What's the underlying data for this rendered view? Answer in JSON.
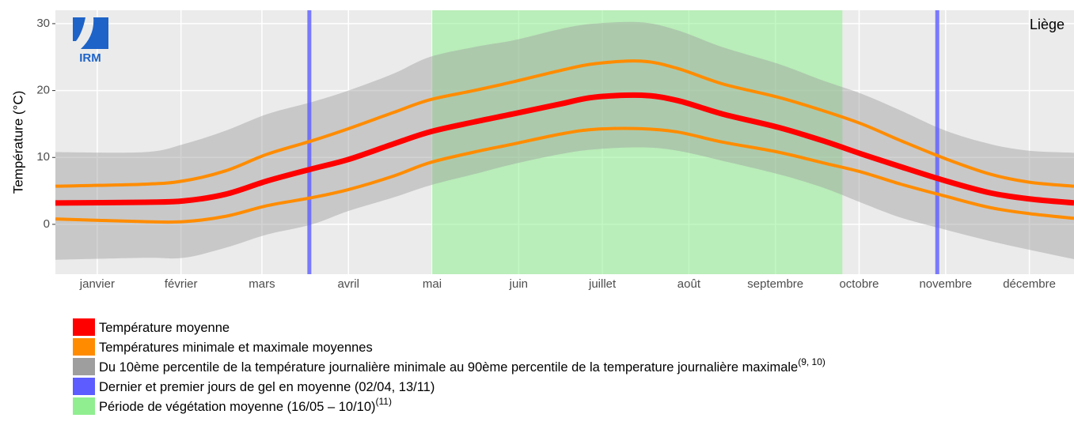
{
  "chart_data": {
    "type": "line",
    "title": "Liège",
    "y_label": "Température (°C)",
    "logo": "IRM",
    "x": [
      1,
      33,
      47,
      62,
      77,
      93,
      106,
      122,
      135,
      151,
      165,
      182,
      194,
      211,
      224,
      240,
      260,
      276,
      290,
      304,
      320,
      336,
      350,
      366
    ],
    "xlim": [
      1,
      366
    ],
    "xticks": [
      {
        "value": 16,
        "label": "janvier"
      },
      {
        "value": 46,
        "label": "février"
      },
      {
        "value": 75,
        "label": "mars"
      },
      {
        "value": 106,
        "label": "avril"
      },
      {
        "value": 136,
        "label": "mai"
      },
      {
        "value": 167,
        "label": "juin"
      },
      {
        "value": 197,
        "label": "juillet"
      },
      {
        "value": 228,
        "label": "août"
      },
      {
        "value": 259,
        "label": "septembre"
      },
      {
        "value": 289,
        "label": "octobre"
      },
      {
        "value": 320,
        "label": "novembre"
      },
      {
        "value": 350,
        "label": "décembre"
      }
    ],
    "ylim": [
      -7.45,
      32.0
    ],
    "yticks": [
      0,
      10,
      20,
      30
    ],
    "grid": true,
    "band": {
      "color": "#9e9e9e",
      "low": [
        -5.3,
        -5.0,
        -5.0,
        -3.5,
        -1.5,
        0,
        2,
        4,
        5.8,
        7.5,
        9,
        10.5,
        11.2,
        11.5,
        11,
        9.5,
        7.5,
        5.5,
        3.2,
        1,
        -0.8,
        -2.5,
        -3.8,
        -5.2
      ],
      "high": [
        10.8,
        10.8,
        12,
        14,
        16.5,
        18.3,
        20,
        22.5,
        25,
        26.5,
        27.5,
        29.2,
        30,
        30.2,
        29,
        26.5,
        24,
        21.5,
        19.5,
        17,
        14,
        12,
        11,
        10.7
      ]
    },
    "vegetation": {
      "start": 136,
      "end": 283,
      "color": "#90ee90"
    },
    "frost_days": {
      "values": [
        92,
        317
      ],
      "color": "#5c5cff"
    },
    "series": [
      {
        "color": "#ff8c00",
        "width": 4,
        "values": [
          5.7,
          6.0,
          6.5,
          8,
          10.5,
          12.5,
          14.3,
          16.7,
          18.6,
          20,
          21.3,
          23,
          24,
          24.4,
          23.3,
          21,
          19,
          17,
          15,
          12.5,
          9.8,
          7.5,
          6.3,
          5.7
        ]
      },
      {
        "color": "#ff8c00",
        "width": 4,
        "values": [
          0.8,
          0.4,
          0.4,
          1.2,
          2.8,
          4.0,
          5.2,
          7.2,
          9.2,
          10.8,
          12,
          13.5,
          14.2,
          14.3,
          13.8,
          12.3,
          10.8,
          9.2,
          7.8,
          6.0,
          4.2,
          2.5,
          1.6,
          0.9
        ]
      },
      {
        "color": "#ff0000",
        "width": 7,
        "values": [
          3.2,
          3.3,
          3.5,
          4.5,
          6.5,
          8.3,
          9.7,
          12,
          13.8,
          15.3,
          16.5,
          18,
          19,
          19.3,
          18.5,
          16.5,
          14.5,
          12.5,
          10.5,
          8.6,
          6.5,
          4.7,
          3.8,
          3.2
        ]
      }
    ],
    "legend": [
      {
        "label": "Température moyenne",
        "color": "#ff0000"
      },
      {
        "label": "Températures minimale et maximale moyennes",
        "color": "#ff8c00"
      },
      {
        "label": "Du 10ème percentile de la température journalière minimale au 90ème percentile de la temperature journalière maximale",
        "superscript": "(9, 10)",
        "color": "#9e9e9e"
      },
      {
        "label": "Dernier et premier jours de gel en moyenne (02/04, 13/11)",
        "color": "#5c5cff"
      },
      {
        "label": "Période de végétation moyenne (16/05 – 10/10)",
        "superscript": "(11)",
        "color": "#90ee90"
      }
    ]
  }
}
